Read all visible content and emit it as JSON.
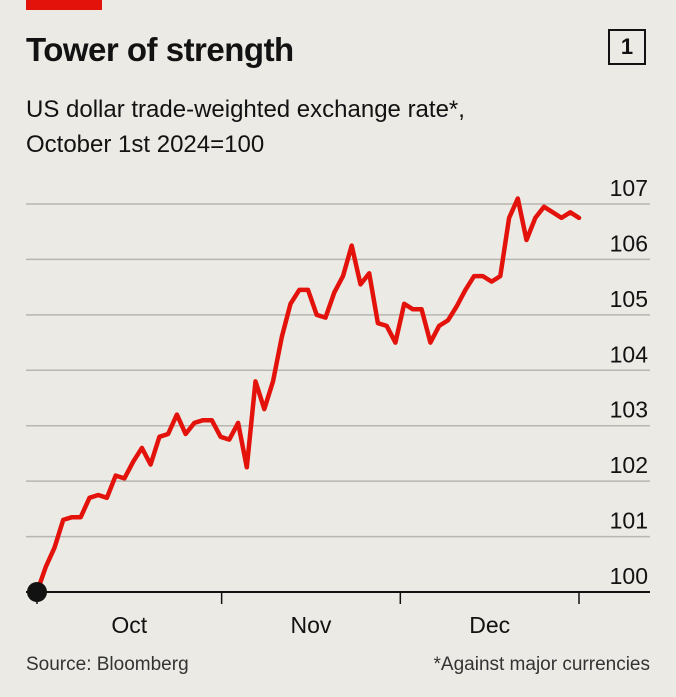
{
  "header": {
    "title": "Tower of strength",
    "badge": "1",
    "subtitle_line1": "US dollar trade-weighted exchange rate*,",
    "subtitle_line2": "October 1st 2024=100"
  },
  "footer": {
    "source": "Source: Bloomberg",
    "note": "*Against major currencies"
  },
  "colors": {
    "line": "#e3120b",
    "accent": "#e3120b",
    "background": "#ebeae5",
    "grid": "#b7b6b1"
  },
  "chart_data": {
    "type": "line",
    "title": "Tower of strength",
    "subtitle": "US dollar trade-weighted exchange rate*, October 1st 2024=100",
    "xlabel": "",
    "ylabel": "",
    "ylim": [
      100,
      107
    ],
    "yticks": [
      "100",
      "101",
      "102",
      "103",
      "104",
      "105",
      "106",
      "107"
    ],
    "y_axis_position": "right",
    "xticks": [
      "Oct",
      "Nov",
      "Dec"
    ],
    "grid": true,
    "series": [
      {
        "values": [
          100.0,
          100.45,
          100.8,
          101.3,
          101.35,
          101.35,
          101.7,
          101.75,
          101.7,
          102.1,
          102.05,
          102.35,
          102.6,
          102.3,
          102.8,
          102.85,
          103.2,
          102.85,
          103.05,
          103.1,
          103.1,
          102.8,
          102.75,
          103.05,
          102.25,
          103.8,
          103.3,
          103.8,
          104.6,
          105.2,
          105.45,
          105.45,
          105.0,
          104.95,
          105.4,
          105.7,
          106.25,
          105.55,
          105.75,
          104.85,
          104.8,
          104.5,
          105.2,
          105.1,
          105.1,
          104.5,
          104.8,
          104.9,
          105.15,
          105.45,
          105.7,
          105.7,
          105.6,
          105.7,
          106.75,
          107.1,
          106.35,
          106.75,
          106.95,
          106.85,
          106.75,
          106.85,
          106.75
        ],
        "start_date": "2024-10-01",
        "end_date": "2024-12-31"
      }
    ]
  }
}
